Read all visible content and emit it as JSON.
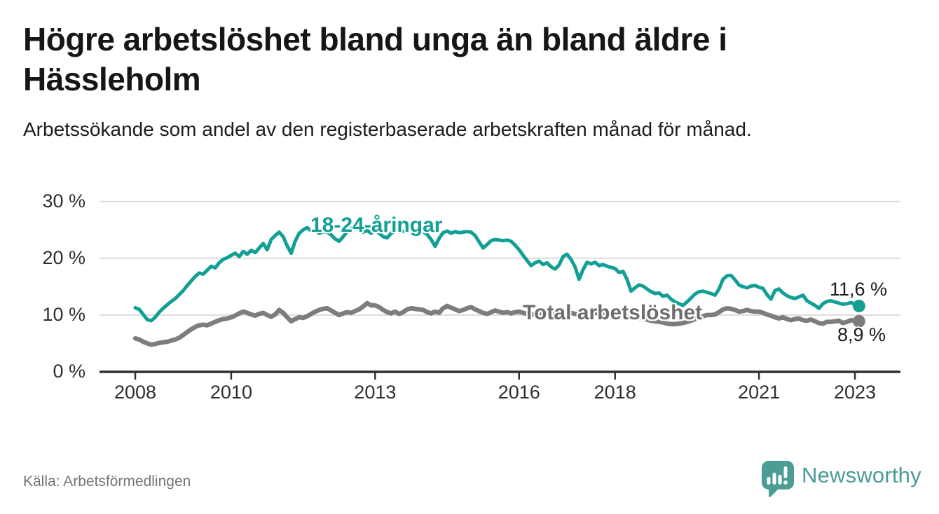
{
  "header": {
    "title": "Högre arbetslöshet bland unga än bland äldre i Hässleholm",
    "subtitle": "Arbetssökande som andel av den registerbaserade arbetskraften månad för månad."
  },
  "footer": {
    "source": "Källa: Arbetsförmedlingen",
    "brand": "Newsworthy"
  },
  "colors": {
    "accent_teal": "#12a095",
    "line_gray": "#7d7d7d",
    "label_gray": "#6e6e6e",
    "logo_teal": "#4a9c95",
    "grid": "#dcdcdc",
    "axis": "#303030",
    "text_dark": "#161616"
  },
  "chart_data": {
    "type": "line",
    "title": "Högre arbetslöshet bland unga än bland äldre i Hässleholm",
    "subtitle": "Arbetssökande som andel av den registerbaserade arbetskraften månad för månad.",
    "x_unit": "month",
    "x_start": "2008-01",
    "x_end": "2023-02",
    "x_tick_years": [
      2008,
      2010,
      2013,
      2016,
      2018,
      2021,
      2023
    ],
    "x_tick_labels": [
      "2008",
      "2010",
      "2013",
      "2016",
      "2018",
      "2021",
      "2023"
    ],
    "y_ticks": [
      0,
      10,
      20,
      30
    ],
    "y_tick_labels": [
      "0 %",
      "10 %",
      "20 %",
      "30 %"
    ],
    "ylim": [
      0,
      30
    ],
    "grid": "horizontal",
    "legend_position": "inline-labels",
    "series": [
      {
        "name": "Total arbetslöshet",
        "end_label": "8,9 %",
        "end_value": 8.9,
        "color": "#7d7d7d",
        "values": [
          5.9,
          5.7,
          5.3,
          5.0,
          4.8,
          4.9,
          5.1,
          5.2,
          5.3,
          5.5,
          5.7,
          6.0,
          6.5,
          7.0,
          7.5,
          7.9,
          8.2,
          8.3,
          8.2,
          8.5,
          8.8,
          9.1,
          9.3,
          9.4,
          9.6,
          9.9,
          10.3,
          10.6,
          10.4,
          10.1,
          9.9,
          10.2,
          10.4,
          10.0,
          9.7,
          10.1,
          10.9,
          10.4,
          9.6,
          8.9,
          9.3,
          9.6,
          9.5,
          9.8,
          10.2,
          10.6,
          10.9,
          11.1,
          11.2,
          10.8,
          10.4,
          10.0,
          10.3,
          10.5,
          10.4,
          10.7,
          11.0,
          11.5,
          12.1,
          11.7,
          11.7,
          11.4,
          10.9,
          10.5,
          10.3,
          10.6,
          10.2,
          10.5,
          11.0,
          11.2,
          11.1,
          11.0,
          10.9,
          10.5,
          10.3,
          10.6,
          10.4,
          11.2,
          11.6,
          11.3,
          11.0,
          10.7,
          10.9,
          11.2,
          11.4,
          11.0,
          10.7,
          10.4,
          10.2,
          10.5,
          10.8,
          10.6,
          10.4,
          10.5,
          10.3,
          10.5,
          10.6,
          10.4,
          10.2,
          10.0,
          10.2,
          10.4,
          10.3,
          10.5,
          10.4,
          10.2,
          10.3,
          10.5,
          10.6,
          10.4,
          10.2,
          10.1,
          10.2,
          10.4,
          10.3,
          10.4,
          10.3,
          10.2,
          10.3,
          10.4,
          10.3,
          10.1,
          9.9,
          9.7,
          9.5,
          9.6,
          9.5,
          9.4,
          9.2,
          9.0,
          8.9,
          8.8,
          8.7,
          8.5,
          8.4,
          8.4,
          8.5,
          8.6,
          8.8,
          9.0,
          9.3,
          9.6,
          9.8,
          10.0,
          10.0,
          10.1,
          10.5,
          11.0,
          11.2,
          11.1,
          10.9,
          10.6,
          10.7,
          10.9,
          10.7,
          10.6,
          10.6,
          10.4,
          10.1,
          9.9,
          9.6,
          9.4,
          9.6,
          9.3,
          9.1,
          9.3,
          9.4,
          9.1,
          9.0,
          9.2,
          8.9,
          8.6,
          8.5,
          8.8,
          8.8,
          8.9,
          9.0,
          8.6,
          8.8,
          9.1,
          9.0,
          8.9
        ]
      },
      {
        "name": "18-24-åringar",
        "end_label": "11,6 %",
        "end_value": 11.6,
        "color": "#12a095",
        "values": [
          11.3,
          11.0,
          10.1,
          9.2,
          9.0,
          9.6,
          10.5,
          11.2,
          11.8,
          12.4,
          12.9,
          13.6,
          14.3,
          15.2,
          16.0,
          16.8,
          17.4,
          17.2,
          17.9,
          18.6,
          18.3,
          19.2,
          19.8,
          20.1,
          20.5,
          20.9,
          20.3,
          21.2,
          20.7,
          21.4,
          21.0,
          21.8,
          22.6,
          21.5,
          23.3,
          24.0,
          24.6,
          23.8,
          22.2,
          20.9,
          23.0,
          24.4,
          25.0,
          25.4,
          24.8,
          25.1,
          24.4,
          24.7,
          24.6,
          24.1,
          23.4,
          23.0,
          23.8,
          24.7,
          25.3,
          25.5,
          25.0,
          24.6,
          24.9,
          24.4,
          25.0,
          24.4,
          23.8,
          23.6,
          24.4,
          24.9,
          25.1,
          24.7,
          24.9,
          24.6,
          24.8,
          24.5,
          24.7,
          24.2,
          23.3,
          22.1,
          23.5,
          24.5,
          24.8,
          24.4,
          24.7,
          24.5,
          24.6,
          24.7,
          24.6,
          24.0,
          22.9,
          21.8,
          22.4,
          23.1,
          23.3,
          23.2,
          23.1,
          23.2,
          23.0,
          22.3,
          21.5,
          20.5,
          19.6,
          18.7,
          19.2,
          19.5,
          18.9,
          19.2,
          18.5,
          18.1,
          18.8,
          20.3,
          20.7,
          19.8,
          18.5,
          16.3,
          18.0,
          19.3,
          19.0,
          19.3,
          18.7,
          18.9,
          18.6,
          18.4,
          18.2,
          17.5,
          17.7,
          16.3,
          14.2,
          14.8,
          15.3,
          15.1,
          14.6,
          14.1,
          13.8,
          13.9,
          13.3,
          13.5,
          12.8,
          12.3,
          12.0,
          11.7,
          12.3,
          13.0,
          13.7,
          14.1,
          14.2,
          14.0,
          13.8,
          13.5,
          14.6,
          16.3,
          16.9,
          17.0,
          16.2,
          15.3,
          15.0,
          14.8,
          15.1,
          15.2,
          14.9,
          14.7,
          13.6,
          12.8,
          14.3,
          14.6,
          13.9,
          13.4,
          13.1,
          12.9,
          13.2,
          13.5,
          12.5,
          12.1,
          11.7,
          11.2,
          12.0,
          12.4,
          12.5,
          12.3,
          12.1,
          11.9,
          12.0,
          12.2,
          11.9,
          11.6
        ]
      }
    ]
  }
}
